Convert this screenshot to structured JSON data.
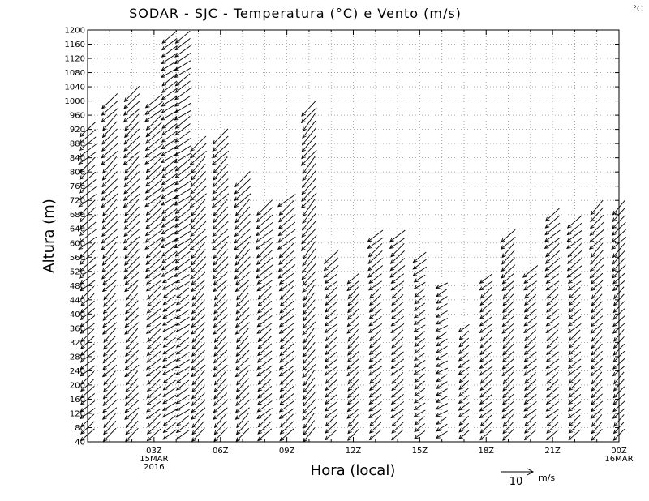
{
  "chart_data": {
    "type": "wind-barb-profile",
    "title": "SODAR - SJC - Temperatura (°C) e Vento (m/s)",
    "corner_unit": "°C",
    "xlabel": "Hora (local)",
    "ylabel": "Altura (m)",
    "ylim": [
      40,
      1200
    ],
    "ytick_step": 40,
    "xlim_hours": [
      0,
      24
    ],
    "grid": true,
    "xticks": [
      {
        "hour": 3,
        "lines": [
          "03Z",
          "15MAR",
          "2016"
        ]
      },
      {
        "hour": 6,
        "lines": [
          "06Z"
        ]
      },
      {
        "hour": 9,
        "lines": [
          "09Z"
        ]
      },
      {
        "hour": 12,
        "lines": [
          "12Z"
        ]
      },
      {
        "hour": 15,
        "lines": [
          "15Z"
        ]
      },
      {
        "hour": 18,
        "lines": [
          "18Z"
        ]
      },
      {
        "hour": 21,
        "lines": [
          "21Z"
        ]
      },
      {
        "hour": 24,
        "lines": [
          "00Z",
          "16MAR"
        ]
      }
    ],
    "reference_vector": {
      "speed": 10,
      "label": "10",
      "unit": "m/s"
    },
    "wind_profiles": [
      {
        "hour": 0.0,
        "top": 920,
        "dir": 15,
        "speed": 7
      },
      {
        "hour": 1.0,
        "top": 1000,
        "dir": 20,
        "speed": 7
      },
      {
        "hour": 2.0,
        "top": 1020,
        "dir": 20,
        "speed": 7
      },
      {
        "hour": 3.0,
        "top": 1000,
        "dir": 15,
        "speed": 7
      },
      {
        "hour": 3.7,
        "top": 1180,
        "dir": 10,
        "speed": 6
      },
      {
        "hour": 4.3,
        "top": 1190,
        "dir": 10,
        "speed": 6
      },
      {
        "hour": 5.0,
        "top": 880,
        "dir": 20,
        "speed": 7
      },
      {
        "hour": 6.0,
        "top": 900,
        "dir": 20,
        "speed": 7
      },
      {
        "hour": 7.0,
        "top": 780,
        "dir": 20,
        "speed": 7
      },
      {
        "hour": 8.0,
        "top": 700,
        "dir": 15,
        "speed": 7
      },
      {
        "hour": 9.0,
        "top": 720,
        "dir": 15,
        "speed": 7
      },
      {
        "hour": 10.0,
        "top": 980,
        "dir": 25,
        "speed": 7
      },
      {
        "hour": 11.0,
        "top": 560,
        "dir": 15,
        "speed": 6
      },
      {
        "hour": 12.0,
        "top": 500,
        "dir": 20,
        "speed": 6
      },
      {
        "hour": 13.0,
        "top": 620,
        "dir": 15,
        "speed": 6
      },
      {
        "hour": 14.0,
        "top": 620,
        "dir": 15,
        "speed": 6
      },
      {
        "hour": 15.0,
        "top": 560,
        "dir": 10,
        "speed": 5
      },
      {
        "hour": 16.0,
        "top": 480,
        "dir": 5,
        "speed": 5
      },
      {
        "hour": 17.0,
        "top": 360,
        "dir": 15,
        "speed": 5
      },
      {
        "hour": 18.0,
        "top": 500,
        "dir": 15,
        "speed": 6
      },
      {
        "hour": 19.0,
        "top": 620,
        "dir": 20,
        "speed": 6
      },
      {
        "hour": 20.0,
        "top": 520,
        "dir": 15,
        "speed": 6
      },
      {
        "hour": 21.0,
        "top": 680,
        "dir": 15,
        "speed": 6
      },
      {
        "hour": 22.0,
        "top": 660,
        "dir": 15,
        "speed": 6
      },
      {
        "hour": 23.0,
        "top": 700,
        "dir": 20,
        "speed": 6
      },
      {
        "hour": 24.0,
        "top": 700,
        "dir": 20,
        "speed": 6
      }
    ]
  }
}
